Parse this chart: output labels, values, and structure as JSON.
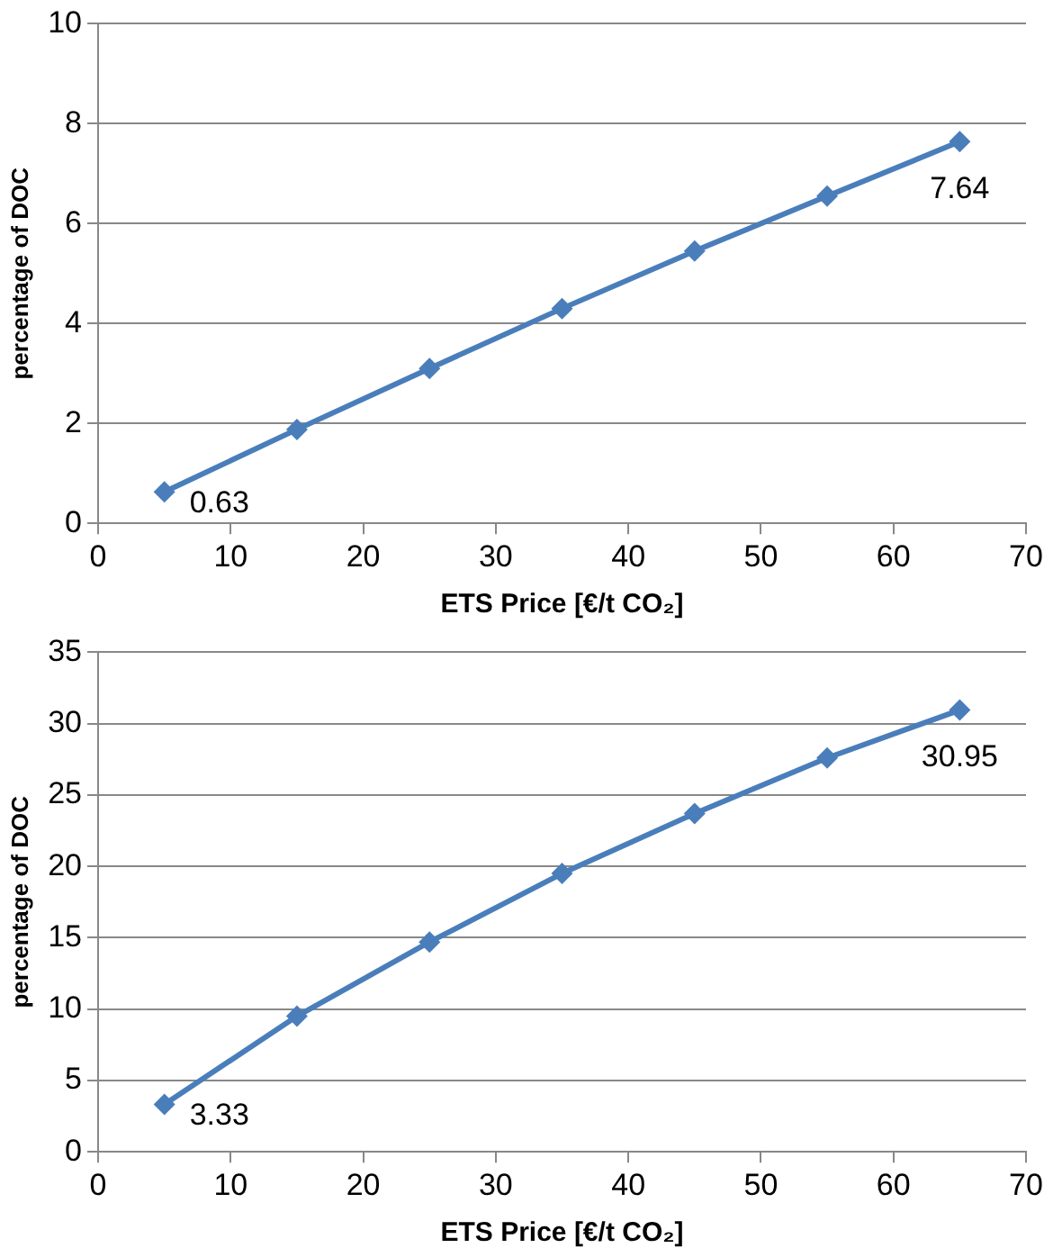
{
  "chart_data": [
    {
      "type": "line",
      "xlabel": "ETS Price [€/t CO₂]",
      "ylabel": "percentage of DOC",
      "x": [
        5,
        15,
        25,
        35,
        45,
        55,
        65
      ],
      "series": [
        {
          "color": "#4a7ebb",
          "values": [
            0.63,
            1.88,
            3.1,
            4.3,
            5.45,
            6.55,
            7.64
          ],
          "value_labels": [
            "0.63",
            null,
            null,
            null,
            null,
            null,
            "7.64"
          ]
        }
      ],
      "xlim": [
        0,
        70
      ],
      "xticks": [
        0,
        10,
        20,
        30,
        40,
        50,
        60,
        70
      ],
      "ylim": [
        0,
        10
      ],
      "yticks": [
        0,
        2,
        4,
        6,
        8,
        10
      ],
      "grid": "y",
      "marker": "diamond",
      "line_style": "solid",
      "legend": false
    },
    {
      "type": "line",
      "xlabel": "ETS Price [€/t CO₂]",
      "ylabel": "percentage of DOC",
      "x": [
        5,
        15,
        25,
        35,
        45,
        55,
        65
      ],
      "series": [
        {
          "color": "#4a7ebb",
          "values": [
            3.33,
            9.5,
            14.7,
            19.5,
            23.7,
            27.6,
            30.95
          ],
          "value_labels": [
            "3.33",
            null,
            null,
            null,
            null,
            null,
            "30.95"
          ]
        }
      ],
      "xlim": [
        0,
        70
      ],
      "xticks": [
        0,
        10,
        20,
        30,
        40,
        50,
        60,
        70
      ],
      "ylim": [
        0,
        35
      ],
      "yticks": [
        0,
        5,
        10,
        15,
        20,
        25,
        30,
        35
      ],
      "grid": "y",
      "marker": "diamond",
      "line_style": "solid",
      "legend": false
    }
  ]
}
